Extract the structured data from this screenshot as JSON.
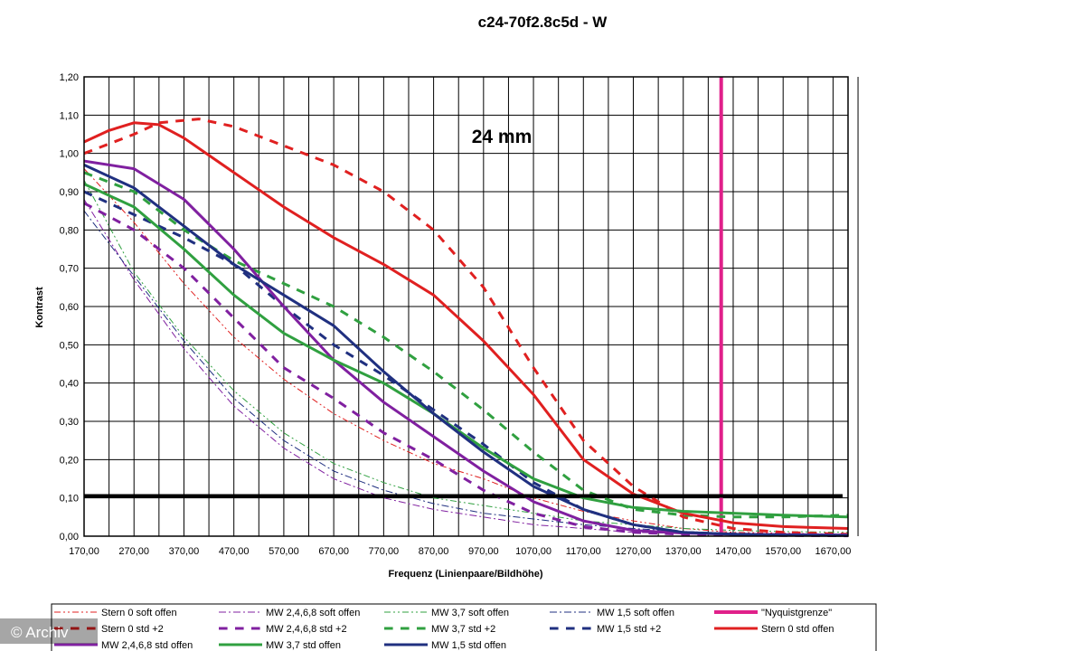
{
  "chart_data": {
    "type": "line",
    "title": "c24-70f2.8c5d - W",
    "annotation": "24 mm",
    "xlabel": "Frequenz (Linienpaare/Bildhöhe)",
    "ylabel": "Kontrast",
    "xlim": [
      170,
      1700
    ],
    "ylim": [
      0,
      1.2
    ],
    "x_ticks": [
      "170,00",
      "270,00",
      "370,00",
      "470,00",
      "570,00",
      "670,00",
      "770,00",
      "870,00",
      "970,00",
      "1070,00",
      "1170,00",
      "1270,00",
      "1370,00",
      "1470,00",
      "1570,00",
      "1670,00"
    ],
    "y_ticks": [
      "0,00",
      "0,10",
      "0,20",
      "0,30",
      "0,40",
      "0,50",
      "0,60",
      "0,70",
      "0,80",
      "0,90",
      "1,00",
      "1,10",
      "1,20"
    ],
    "grid": true,
    "legend_position": "bottom",
    "reference_line": {
      "y": 0.105,
      "color": "#000000"
    },
    "series": [
      {
        "name": "Stern 0 soft offen",
        "color": "#e02020",
        "style": "dashdotdot",
        "width": 1,
        "points": [
          [
            170,
            0.96
          ],
          [
            270,
            0.82
          ],
          [
            370,
            0.66
          ],
          [
            470,
            0.52
          ],
          [
            570,
            0.41
          ],
          [
            670,
            0.32
          ],
          [
            770,
            0.25
          ],
          [
            870,
            0.19
          ],
          [
            970,
            0.15
          ],
          [
            1070,
            0.1
          ],
          [
            1170,
            0.065
          ],
          [
            1270,
            0.04
          ],
          [
            1370,
            0.02
          ],
          [
            1470,
            0.01
          ],
          [
            1570,
            0.008
          ],
          [
            1700,
            0.005
          ]
        ]
      },
      {
        "name": "MW 2,4,6,8 soft offen",
        "color": "#8020a0",
        "style": "dashdot",
        "width": 1,
        "points": [
          [
            170,
            0.88
          ],
          [
            270,
            0.67
          ],
          [
            370,
            0.49
          ],
          [
            470,
            0.34
          ],
          [
            570,
            0.23
          ],
          [
            670,
            0.15
          ],
          [
            770,
            0.1
          ],
          [
            870,
            0.07
          ],
          [
            970,
            0.05
          ],
          [
            1070,
            0.03
          ],
          [
            1170,
            0.02
          ],
          [
            1270,
            0.01
          ],
          [
            1370,
            0.007
          ],
          [
            1470,
            0.005
          ],
          [
            1570,
            0.004
          ],
          [
            1700,
            0.003
          ]
        ]
      },
      {
        "name": "MW 3,7 soft offen",
        "color": "#30a040",
        "style": "dashdotdot",
        "width": 1,
        "points": [
          [
            170,
            0.93
          ],
          [
            270,
            0.69
          ],
          [
            370,
            0.52
          ],
          [
            470,
            0.38
          ],
          [
            570,
            0.27
          ],
          [
            670,
            0.19
          ],
          [
            770,
            0.14
          ],
          [
            870,
            0.1
          ],
          [
            970,
            0.08
          ],
          [
            1070,
            0.06
          ],
          [
            1170,
            0.04
          ],
          [
            1270,
            0.03
          ],
          [
            1370,
            0.02
          ],
          [
            1470,
            0.015
          ],
          [
            1570,
            0.012
          ],
          [
            1700,
            0.01
          ]
        ]
      },
      {
        "name": "MW 1,5 soft offen",
        "color": "#203080",
        "style": "dashdot",
        "width": 1,
        "points": [
          [
            170,
            0.85
          ],
          [
            270,
            0.68
          ],
          [
            370,
            0.51
          ],
          [
            470,
            0.36
          ],
          [
            570,
            0.25
          ],
          [
            670,
            0.17
          ],
          [
            770,
            0.12
          ],
          [
            870,
            0.085
          ],
          [
            970,
            0.06
          ],
          [
            1070,
            0.045
          ],
          [
            1170,
            0.03
          ],
          [
            1270,
            0.02
          ],
          [
            1370,
            0.012
          ],
          [
            1470,
            0.008
          ],
          [
            1570,
            0.006
          ],
          [
            1700,
            0.005
          ]
        ]
      },
      {
        "name": "\"Nyquistgrenze\"",
        "color": "#e0208a",
        "style": "solid",
        "width": 4,
        "points": [
          [
            1446,
            0
          ],
          [
            1446,
            1.2
          ]
        ]
      },
      {
        "name": "Stern 0 std +2",
        "color": "#e02020",
        "style": "dash",
        "width": 3,
        "points": [
          [
            170,
            1.0
          ],
          [
            270,
            1.05
          ],
          [
            320,
            1.08
          ],
          [
            400,
            1.09
          ],
          [
            470,
            1.07
          ],
          [
            570,
            1.02
          ],
          [
            670,
            0.97
          ],
          [
            770,
            0.9
          ],
          [
            870,
            0.8
          ],
          [
            970,
            0.65
          ],
          [
            1070,
            0.44
          ],
          [
            1170,
            0.25
          ],
          [
            1270,
            0.13
          ],
          [
            1370,
            0.05
          ],
          [
            1470,
            0.02
          ],
          [
            1570,
            0.01
          ],
          [
            1700,
            0.005
          ]
        ]
      },
      {
        "name": "MW 2,4,6,8 std +2",
        "color": "#8020a0",
        "style": "dash",
        "width": 3,
        "points": [
          [
            170,
            0.87
          ],
          [
            270,
            0.8
          ],
          [
            370,
            0.7
          ],
          [
            470,
            0.57
          ],
          [
            570,
            0.44
          ],
          [
            670,
            0.36
          ],
          [
            770,
            0.27
          ],
          [
            870,
            0.2
          ],
          [
            970,
            0.12
          ],
          [
            1070,
            0.06
          ],
          [
            1170,
            0.025
          ],
          [
            1270,
            0.01
          ],
          [
            1370,
            0.005
          ],
          [
            1470,
            0.003
          ],
          [
            1570,
            0.002
          ],
          [
            1700,
            0.001
          ]
        ]
      },
      {
        "name": "MW 3,7 std +2",
        "color": "#30a040",
        "style": "dash",
        "width": 3,
        "points": [
          [
            170,
            0.95
          ],
          [
            270,
            0.9
          ],
          [
            370,
            0.8
          ],
          [
            470,
            0.72
          ],
          [
            570,
            0.66
          ],
          [
            670,
            0.6
          ],
          [
            770,
            0.52
          ],
          [
            870,
            0.43
          ],
          [
            970,
            0.33
          ],
          [
            1070,
            0.22
          ],
          [
            1170,
            0.12
          ],
          [
            1270,
            0.07
          ],
          [
            1370,
            0.055
          ],
          [
            1470,
            0.05
          ],
          [
            1570,
            0.05
          ],
          [
            1700,
            0.055
          ]
        ]
      },
      {
        "name": "MW 1,5 std +2",
        "color": "#203080",
        "style": "dash",
        "width": 3,
        "points": [
          [
            170,
            0.9
          ],
          [
            270,
            0.84
          ],
          [
            370,
            0.78
          ],
          [
            470,
            0.71
          ],
          [
            570,
            0.6
          ],
          [
            670,
            0.5
          ],
          [
            770,
            0.42
          ],
          [
            870,
            0.33
          ],
          [
            970,
            0.24
          ],
          [
            1070,
            0.14
          ],
          [
            1170,
            0.07
          ],
          [
            1270,
            0.03
          ],
          [
            1370,
            0.01
          ],
          [
            1470,
            0.005
          ],
          [
            1570,
            0.003
          ],
          [
            1700,
            0.002
          ]
        ]
      },
      {
        "name": "Stern 0 std offen",
        "color": "#e02020",
        "style": "solid",
        "width": 3,
        "points": [
          [
            170,
            1.03
          ],
          [
            220,
            1.06
          ],
          [
            270,
            1.08
          ],
          [
            320,
            1.075
          ],
          [
            370,
            1.04
          ],
          [
            470,
            0.95
          ],
          [
            570,
            0.86
          ],
          [
            670,
            0.78
          ],
          [
            770,
            0.71
          ],
          [
            870,
            0.63
          ],
          [
            970,
            0.51
          ],
          [
            1070,
            0.37
          ],
          [
            1170,
            0.2
          ],
          [
            1270,
            0.11
          ],
          [
            1370,
            0.06
          ],
          [
            1470,
            0.035
          ],
          [
            1570,
            0.025
          ],
          [
            1700,
            0.02
          ]
        ]
      },
      {
        "name": "MW 2,4,6,8 std offen",
        "color": "#8020a0",
        "style": "solid",
        "width": 3,
        "points": [
          [
            170,
            0.98
          ],
          [
            270,
            0.96
          ],
          [
            370,
            0.88
          ],
          [
            470,
            0.75
          ],
          [
            570,
            0.6
          ],
          [
            670,
            0.46
          ],
          [
            770,
            0.35
          ],
          [
            870,
            0.26
          ],
          [
            970,
            0.17
          ],
          [
            1070,
            0.09
          ],
          [
            1170,
            0.04
          ],
          [
            1270,
            0.015
          ],
          [
            1370,
            0.008
          ],
          [
            1470,
            0.005
          ],
          [
            1570,
            0.004
          ],
          [
            1700,
            0.003
          ]
        ]
      },
      {
        "name": "MW 3,7 std offen",
        "color": "#30a040",
        "style": "solid",
        "width": 3,
        "points": [
          [
            170,
            0.92
          ],
          [
            270,
            0.86
          ],
          [
            370,
            0.75
          ],
          [
            470,
            0.63
          ],
          [
            570,
            0.53
          ],
          [
            670,
            0.46
          ],
          [
            770,
            0.4
          ],
          [
            870,
            0.32
          ],
          [
            970,
            0.23
          ],
          [
            1070,
            0.15
          ],
          [
            1170,
            0.1
          ],
          [
            1270,
            0.075
          ],
          [
            1370,
            0.065
          ],
          [
            1470,
            0.06
          ],
          [
            1570,
            0.055
          ],
          [
            1700,
            0.05
          ]
        ]
      },
      {
        "name": "MW 1,5 std offen",
        "color": "#203080",
        "style": "solid",
        "width": 3,
        "points": [
          [
            170,
            0.97
          ],
          [
            270,
            0.91
          ],
          [
            370,
            0.81
          ],
          [
            470,
            0.71
          ],
          [
            570,
            0.63
          ],
          [
            670,
            0.55
          ],
          [
            770,
            0.43
          ],
          [
            870,
            0.32
          ],
          [
            970,
            0.22
          ],
          [
            1070,
            0.13
          ],
          [
            1170,
            0.07
          ],
          [
            1270,
            0.03
          ],
          [
            1370,
            0.01
          ],
          [
            1470,
            0.005
          ],
          [
            1570,
            0.003
          ],
          [
            1700,
            0.002
          ]
        ]
      }
    ]
  },
  "watermark": "© Archiv"
}
